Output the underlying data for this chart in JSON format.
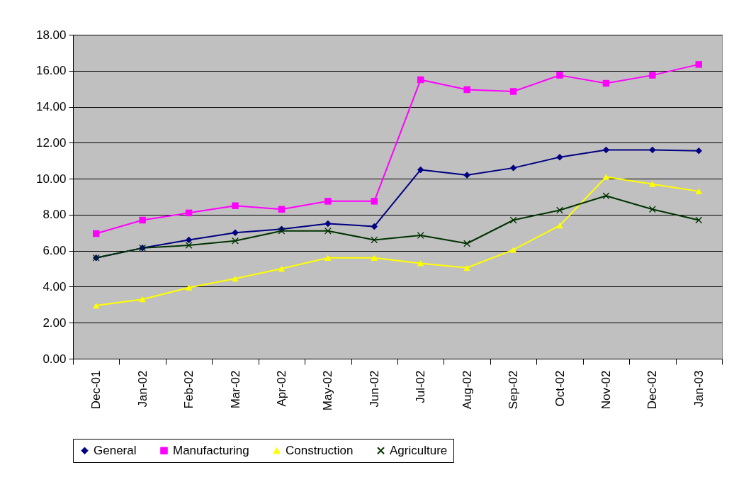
{
  "chart_data": {
    "type": "line",
    "categories": [
      "Dec-01",
      "Jan-02",
      "Feb-02",
      "Mar-02",
      "Apr-02",
      "May-02",
      "Jun-02",
      "Jul-02",
      "Aug-02",
      "Sep-02",
      "Oct-02",
      "Nov-02",
      "Dec-02",
      "Jan-03"
    ],
    "series": [
      {
        "name": "General",
        "color": "#000080",
        "marker": "diamond",
        "values": [
          5.6,
          6.15,
          6.6,
          7.0,
          7.2,
          7.5,
          7.35,
          10.5,
          10.2,
          10.6,
          11.2,
          11.6,
          11.6,
          11.55
        ]
      },
      {
        "name": "Manufacturing",
        "color": "#ff00ff",
        "marker": "square",
        "values": [
          6.95,
          7.7,
          8.1,
          8.5,
          8.3,
          8.75,
          8.75,
          15.5,
          14.95,
          14.85,
          15.75,
          15.3,
          15.75,
          16.35
        ]
      },
      {
        "name": "Construction",
        "color": "#ffff00",
        "marker": "triangle",
        "values": [
          2.95,
          3.3,
          3.95,
          4.45,
          5.0,
          5.6,
          5.6,
          5.3,
          5.05,
          6.05,
          7.4,
          10.1,
          9.7,
          9.3
        ]
      },
      {
        "name": "Agriculture",
        "color": "#003300",
        "marker": "cross",
        "values": [
          5.6,
          6.15,
          6.3,
          6.55,
          7.1,
          7.1,
          6.6,
          6.85,
          6.4,
          7.7,
          8.25,
          9.05,
          8.3,
          7.7
        ]
      }
    ],
    "ylim": [
      0,
      18
    ],
    "yticks": [
      {
        "value": 0,
        "label": "0.00"
      },
      {
        "value": 2,
        "label": "2.00"
      },
      {
        "value": 4,
        "label": "4.00"
      },
      {
        "value": 6,
        "label": "6.00"
      },
      {
        "value": 8,
        "label": "8.00"
      },
      {
        "value": 10,
        "label": "10.00"
      },
      {
        "value": 12,
        "label": "12.00"
      },
      {
        "value": 14,
        "label": "14.00"
      },
      {
        "value": 16,
        "label": "16.00"
      },
      {
        "value": 18,
        "label": "18.00"
      }
    ],
    "grid": "y",
    "legend": "bottom"
  }
}
